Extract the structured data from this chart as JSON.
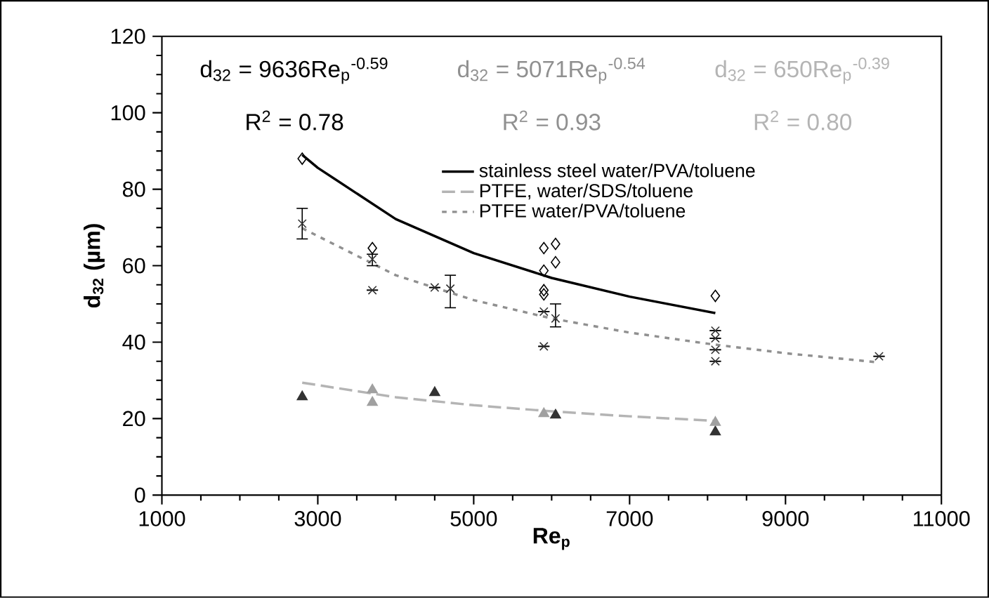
{
  "chart_data": {
    "type": "scatter",
    "xlabel": "Re$_{p}$",
    "ylabel": "d$_{32}$ (µm)",
    "xlim": [
      1000,
      11000
    ],
    "xticks": [
      1000,
      3000,
      5000,
      7000,
      9000,
      11000
    ],
    "ylim": [
      0,
      120
    ],
    "yticks": [
      0,
      20,
      40,
      60,
      80,
      100,
      120
    ],
    "grid": false,
    "legend": "top right",
    "annotations": [
      "d$_{32}$ = 9636Re$_{p}$$^{-0.59}$",
      "R$^{2}$ = 0.78",
      "d$_{32}$ = 5071Re$_{p}$$^{-0.54}$",
      "R$^{2}$ = 0.93",
      "d$_{32}$ = 650Re$_{p}$$^{-0.39}$",
      "R$^{2}$ = 0.80"
    ],
    "series": [
      {
        "name": "stainless steel water/PVA/toluene",
        "type": "line",
        "color": "#000000",
        "line_style": "solid",
        "marker": "none",
        "x": [
          2800,
          3000,
          4000,
          5000,
          6000,
          7000,
          8100
        ],
        "values": [
          89,
          85.6,
          72.2,
          63.3,
          56.8,
          51.9,
          47.6
        ]
      },
      {
        "name": "PTFE, water/SDS/toluene",
        "type": "line",
        "color": "#b4b4b4",
        "line_style": "dashed",
        "marker": "none",
        "x": [
          2800,
          4000,
          5000,
          6000,
          7000,
          8100
        ],
        "values": [
          29.4,
          25.6,
          23.5,
          21.9,
          20.6,
          19.4
        ]
      },
      {
        "name": "PTFE water/PVA/toluene",
        "type": "line",
        "color": "#909090",
        "line_style": "dotted",
        "marker": "none",
        "x": [
          2800,
          4000,
          5000,
          6000,
          7000,
          8000,
          9000,
          10200
        ],
        "values": [
          69.8,
          57.5,
          51.0,
          46.2,
          42.5,
          39.6,
          37.1,
          34.7
        ]
      },
      {
        "color": "#000000",
        "marker": "diamond",
        "x": [
          2800,
          3700,
          5900,
          5900,
          5900,
          5900,
          6050,
          6050,
          8100
        ],
        "values": [
          88,
          64.6,
          64.6,
          58.7,
          53.6,
          52.5,
          65.7,
          60.9,
          52.1
        ]
      },
      {
        "color": "#333333",
        "marker": "cross",
        "x": [
          2800,
          3700,
          3700,
          4500,
          4700,
          5900,
          5900,
          6050,
          8100,
          8100,
          8100,
          8100,
          10200
        ],
        "values": [
          71,
          61.7,
          53.6,
          54.3,
          54,
          48,
          38.9,
          46.2,
          43,
          41,
          38,
          35,
          36.3
        ],
        "errors": [
          [
            67,
            75
          ],
          [
            60,
            63
          ],
          null,
          null,
          [
            49,
            57.5
          ],
          null,
          null,
          [
            44,
            50
          ],
          null,
          null,
          null,
          null,
          null
        ]
      },
      {
        "color": "#333333",
        "marker": "triangle",
        "x": [
          2800,
          4500,
          6050,
          8100
        ],
        "values": [
          25.7,
          26.8,
          20.9,
          16.5
        ]
      },
      {
        "color": "#a0a0a0",
        "marker": "triangle",
        "x": [
          3700,
          3700,
          5900,
          8100
        ],
        "values": [
          24.2,
          27.5,
          21.3,
          19
        ]
      }
    ]
  }
}
